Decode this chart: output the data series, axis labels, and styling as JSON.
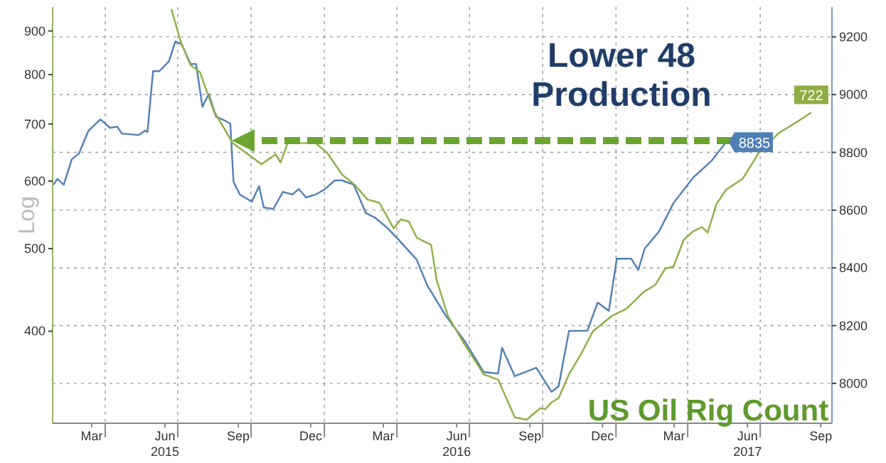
{
  "chart_data": {
    "type": "line",
    "ylabel": "Log",
    "log": true,
    "grid": true,
    "xlim": [
      "2015-01-25",
      "2017-09-29"
    ],
    "xticks": [
      {
        "value": "2015-03-15",
        "label": "Mar"
      },
      {
        "value": "2015-04-01",
        "label": null
      },
      {
        "value": "2015-06-15",
        "label": "Jun\n2015"
      },
      {
        "value": "2015-07-01",
        "label": null
      },
      {
        "value": "2015-09-15",
        "label": "Sep"
      },
      {
        "value": "2015-10-01",
        "label": null
      },
      {
        "value": "2015-12-15",
        "label": "Dec"
      },
      {
        "value": "2016-01-01",
        "label": null
      },
      {
        "value": "2016-03-15",
        "label": "Mar"
      },
      {
        "value": "2016-04-01",
        "label": null
      },
      {
        "value": "2016-06-15",
        "label": "Jun\n2016"
      },
      {
        "value": "2016-07-01",
        "label": null
      },
      {
        "value": "2016-09-15",
        "label": "Sep"
      },
      {
        "value": "2016-10-01",
        "label": null
      },
      {
        "value": "2016-12-15",
        "label": "Dec"
      },
      {
        "value": "2017-01-01",
        "label": null
      },
      {
        "value": "2017-03-15",
        "label": "Mar"
      },
      {
        "value": "2017-04-01",
        "label": null
      },
      {
        "value": "2017-06-15",
        "label": "Jun\n2017"
      },
      {
        "value": "2017-07-01",
        "label": null
      },
      {
        "value": "2017-09-15",
        "label": "Sep"
      }
    ],
    "ylim": [
      312,
      960
    ],
    "yticks": [
      400,
      500,
      600,
      700,
      800,
      900
    ],
    "y2lim": [
      7862,
      9303
    ],
    "y2ticks": [
      8000,
      8200,
      8400,
      8600,
      8800,
      9000,
      9200
    ],
    "annotations": [
      "Lower 48\nProduction",
      "US Oil Rig Count"
    ],
    "series": [
      {
        "color": "#4f7fb5",
        "axis": "y2",
        "x": [
          "2015-01-26",
          "2015-01-31",
          "2015-02-08",
          "2015-02-18",
          "2015-02-27",
          "2015-03-11",
          "2015-03-26",
          "2015-04-07",
          "2015-04-16",
          "2015-04-22",
          "2015-05-13",
          "2015-05-21",
          "2015-05-24",
          "2015-05-31",
          "2015-06-08",
          "2015-06-20",
          "2015-06-28",
          "2015-07-06",
          "2015-07-17",
          "2015-07-24",
          "2015-08-01",
          "2015-08-09",
          "2015-08-18",
          "2015-08-30",
          "2015-09-05",
          "2015-09-09",
          "2015-09-17",
          "2015-10-02",
          "2015-10-11",
          "2015-10-17",
          "2015-10-29",
          "2015-11-10",
          "2015-11-22",
          "2015-11-30",
          "2015-12-09",
          "2015-12-21",
          "2016-01-02",
          "2016-01-14",
          "2016-01-23",
          "2016-02-07",
          "2016-02-22",
          "2016-03-04",
          "2016-03-19",
          "2016-04-02",
          "2016-04-26",
          "2016-05-09",
          "2016-06-01",
          "2016-06-25",
          "2016-07-19",
          "2016-08-06",
          "2016-08-11",
          "2016-08-27",
          "2016-09-23",
          "2016-10-12",
          "2016-10-21",
          "2016-11-03",
          "2016-11-26",
          "2016-12-09",
          "2016-12-23",
          "2017-01-02",
          "2017-01-20",
          "2017-01-29",
          "2017-02-06",
          "2017-02-24",
          "2017-03-14",
          "2017-04-08",
          "2017-05-01",
          "2017-05-19"
        ],
        "values": [
          8688,
          8708,
          8688,
          8776,
          8796,
          8875,
          8914,
          8885,
          8889,
          8865,
          8860,
          8875,
          8870,
          9081,
          9081,
          9115,
          9184,
          9174,
          9106,
          9106,
          8958,
          9002,
          8924,
          8909,
          8899,
          8698,
          8654,
          8629,
          8683,
          8609,
          8604,
          8663,
          8654,
          8673,
          8644,
          8654,
          8673,
          8703,
          8703,
          8688,
          8590,
          8575,
          8541,
          8501,
          8428,
          8340,
          8236,
          8147,
          8039,
          8034,
          8123,
          8025,
          8054,
          7971,
          7990,
          8182,
          8182,
          8280,
          8251,
          8432,
          8432,
          8393,
          8467,
          8526,
          8624,
          8713,
          8771,
          8835
        ],
        "value_labels": [
          null,
          null,
          null,
          null,
          null,
          null,
          null,
          null,
          null,
          null,
          null,
          null,
          null,
          null,
          null,
          null,
          null,
          null,
          null,
          null,
          null,
          null,
          null,
          null,
          null,
          null,
          null,
          null,
          null,
          null,
          null,
          null,
          null,
          null,
          null,
          null,
          null,
          null,
          null,
          null,
          null,
          null,
          null,
          null,
          null,
          null,
          null,
          null,
          null,
          null,
          null,
          null,
          null,
          null,
          null,
          null,
          null,
          null,
          null,
          null,
          null,
          null,
          null,
          null,
          null,
          null,
          null,
          "8835"
        ]
      },
      {
        "color": "#8fae45",
        "axis": "y",
        "x": [
          "2015-06-23",
          "2015-07-05",
          "2015-07-17",
          "2015-07-29",
          "2015-08-15",
          "2015-09-08",
          "2015-10-14",
          "2015-11-01",
          "2015-11-07",
          "2015-11-16",
          "2015-12-21",
          "2016-01-05",
          "2016-01-23",
          "2016-02-09",
          "2016-02-24",
          "2016-03-10",
          "2016-03-28",
          "2016-04-06",
          "2016-04-16",
          "2016-04-26",
          "2016-05-14",
          "2016-05-21",
          "2016-06-04",
          "2016-06-25",
          "2016-07-19",
          "2016-08-06",
          "2016-08-27",
          "2016-09-11",
          "2016-09-28",
          "2016-10-04",
          "2016-10-12",
          "2016-10-21",
          "2016-11-03",
          "2016-11-20",
          "2016-12-03",
          "2016-12-27",
          "2017-01-14",
          "2017-02-05",
          "2017-02-19",
          "2017-03-04",
          "2017-03-14",
          "2017-03-27",
          "2017-04-08",
          "2017-04-19",
          "2017-04-26",
          "2017-05-07",
          "2017-05-19",
          "2017-06-09",
          "2017-06-29",
          "2017-07-24",
          "2017-08-16",
          "2017-09-03"
        ],
        "values": [
          955,
          873,
          821,
          805,
          726,
          665,
          628,
          645,
          631,
          665,
          665,
          647,
          611,
          593,
          571,
          566,
          528,
          541,
          538,
          515,
          505,
          459,
          417,
          386,
          356,
          351,
          317,
          315,
          325,
          324,
          330,
          334,
          356,
          379,
          400,
          417,
          425,
          445,
          453,
          474,
          476,
          512,
          524,
          530,
          522,
          564,
          586,
          604,
          647,
          683,
          704,
          722
        ],
        "value_labels": [
          null,
          null,
          null,
          null,
          null,
          null,
          null,
          null,
          null,
          null,
          null,
          null,
          null,
          null,
          null,
          null,
          null,
          null,
          null,
          null,
          null,
          null,
          null,
          null,
          null,
          null,
          null,
          null,
          null,
          null,
          null,
          null,
          null,
          null,
          null,
          null,
          null,
          null,
          null,
          null,
          null,
          null,
          null,
          null,
          null,
          null,
          null,
          null,
          null,
          null,
          null,
          "722"
        ]
      }
    ]
  }
}
